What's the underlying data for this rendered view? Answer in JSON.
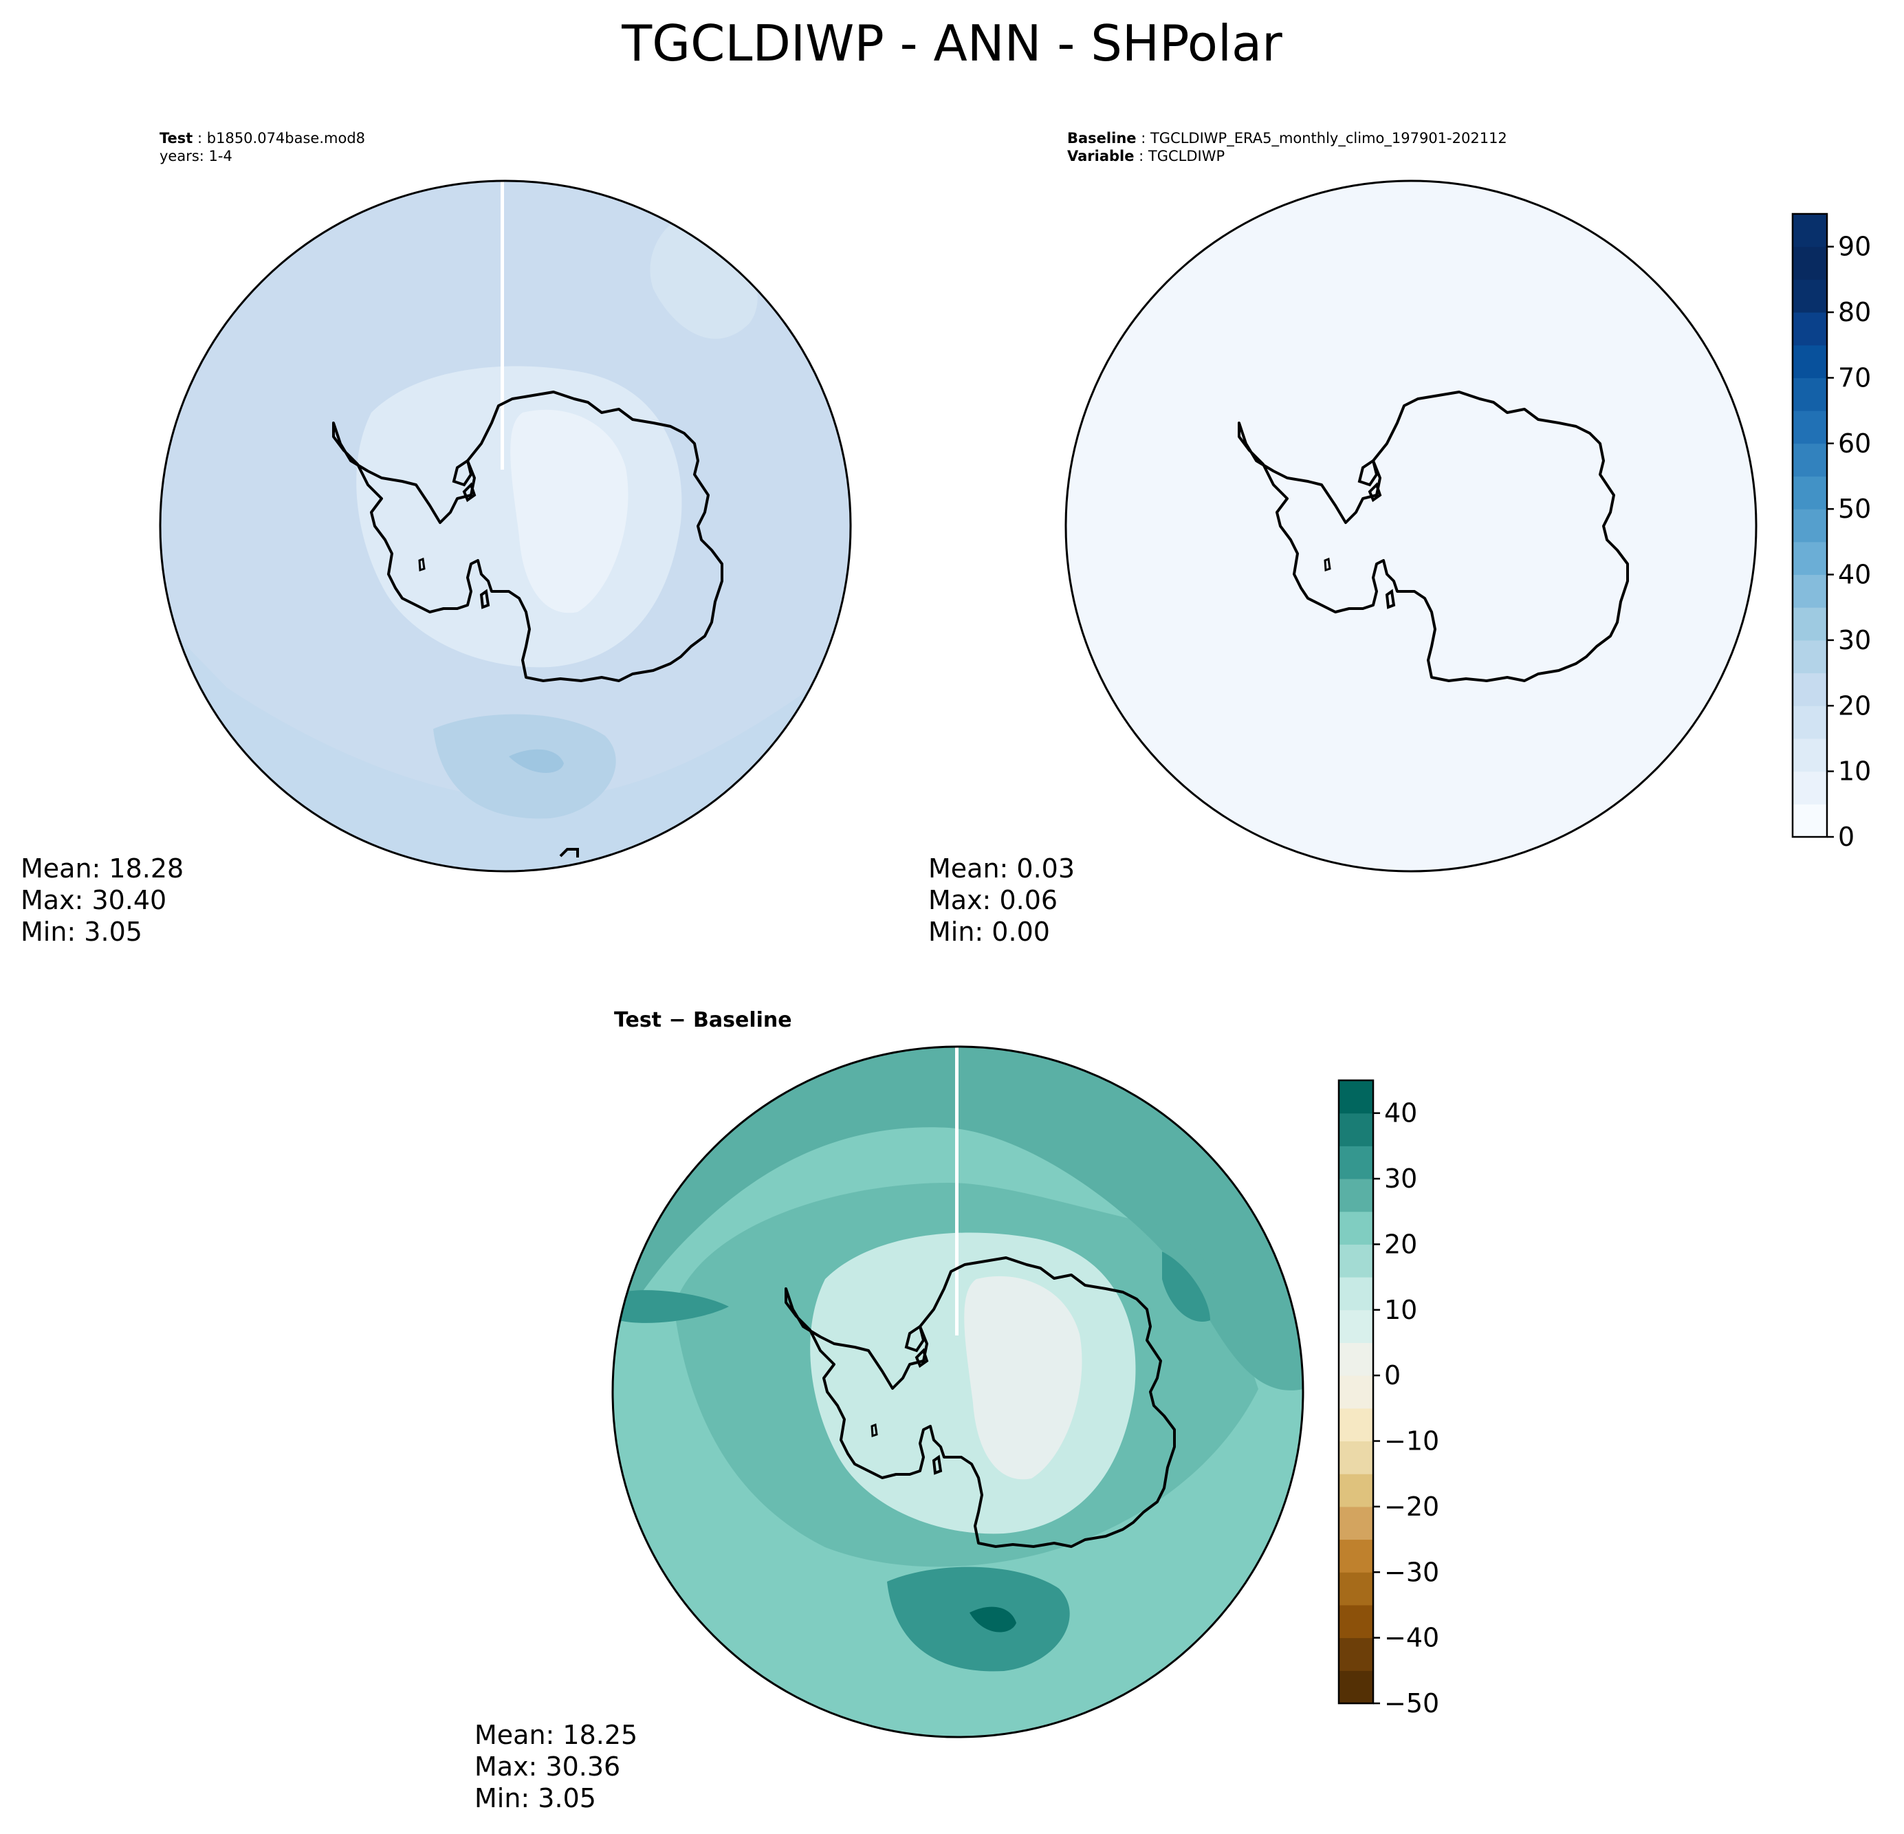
{
  "figure": {
    "title": "TGCLDIWP - ANN - SHPolar"
  },
  "panels": {
    "test": {
      "header_label": "Test",
      "header_value": "b1850.074base.mod8",
      "header_line2": "years: 1-4",
      "mean": "Mean: 18.28",
      "max": "Max: 30.40",
      "min": "Min:  3.05"
    },
    "baseline": {
      "header_label": "Baseline",
      "header_value": "TGCLDIWP_ERA5_monthly_climo_197901-202112",
      "header_label2": "Variable",
      "header_value2": "TGCLDIWP",
      "mean": "Mean:  0.03",
      "max": "Max:  0.06",
      "min": "Min:  0.00"
    },
    "diff": {
      "title": "Test − Baseline",
      "mean": "Mean: 18.25",
      "max": "Max: 30.36",
      "min": "Min:  3.05"
    }
  },
  "colors": {
    "blues_low": "#f2f7fd",
    "blues_high": "#08306b",
    "brbg_low": "#543005",
    "brbg_mid": "#eef1ea",
    "brbg_high": "#003c30",
    "coastline": "#000000"
  },
  "chart_data": [
    {
      "type": "heatmap",
      "name": "test",
      "projection": "south polar stereographic",
      "stats": {
        "mean": 18.28,
        "max": 30.4,
        "min": 3.05
      },
      "colorbar": "shared with baseline (Blues)",
      "regions": [
        {
          "region": "open ocean (background)",
          "value_range": [
            15,
            20
          ]
        },
        {
          "region": "outer ocean ring",
          "value_range": [
            20,
            25
          ]
        },
        {
          "region": "Pacific sector maximum",
          "value_range": [
            25,
            30
          ]
        },
        {
          "region": "coastal Antarctica",
          "value_range": [
            10,
            15
          ]
        },
        {
          "region": "East Antarctic plateau",
          "value_range": [
            5,
            10
          ]
        }
      ]
    },
    {
      "type": "heatmap",
      "name": "baseline",
      "projection": "south polar stereographic",
      "stats": {
        "mean": 0.03,
        "max": 0.06,
        "min": 0.0
      },
      "regions": [
        {
          "region": "entire domain",
          "value_range": [
            0,
            5
          ]
        }
      ],
      "colorbar": {
        "colormap": "Blues",
        "levels": [
          0,
          5,
          10,
          15,
          20,
          25,
          30,
          35,
          40,
          45,
          50,
          55,
          60,
          65,
          70,
          75,
          80,
          85,
          90,
          95
        ],
        "tick_labels": [
          "0",
          "10",
          "20",
          "30",
          "40",
          "50",
          "60",
          "70",
          "80",
          "90"
        ],
        "range": [
          0,
          95
        ]
      }
    },
    {
      "type": "heatmap",
      "name": "diff",
      "projection": "south polar stereographic",
      "stats": {
        "mean": 18.25,
        "max": 30.36,
        "min": 3.05
      },
      "regions": [
        {
          "region": "open ocean (background)",
          "value_range": [
            15,
            20
          ]
        },
        {
          "region": "outer ocean ring",
          "value_range": [
            20,
            25
          ]
        },
        {
          "region": "Pacific sector maximum",
          "value_range": [
            25,
            35
          ]
        },
        {
          "region": "coastal Antarctica",
          "value_range": [
            10,
            15
          ]
        },
        {
          "region": "East Antarctic plateau",
          "value_range": [
            0,
            10
          ]
        }
      ],
      "colorbar": {
        "colormap": "BrBG",
        "levels": [
          -50,
          -45,
          -40,
          -35,
          -30,
          -25,
          -20,
          -15,
          -10,
          -5,
          0,
          5,
          10,
          15,
          20,
          25,
          30,
          35,
          40,
          45
        ],
        "tick_labels": [
          "−50",
          "−40",
          "−30",
          "−20",
          "−10",
          "0",
          "10",
          "20",
          "30",
          "40"
        ],
        "range": [
          -50,
          45
        ]
      }
    }
  ]
}
